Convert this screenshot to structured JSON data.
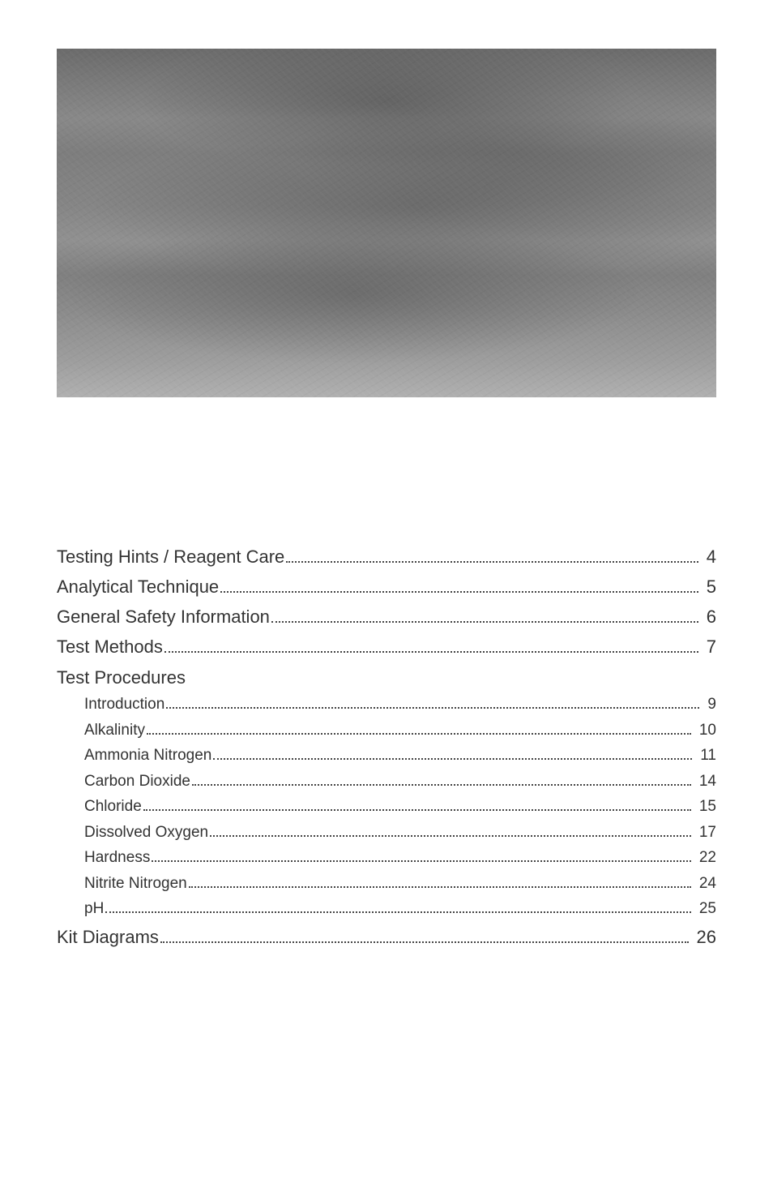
{
  "hero": {
    "alt": "grayscale-fish-photo"
  },
  "toc": {
    "top": [
      {
        "label": "Testing Hints / Reagent Care",
        "page": "4"
      },
      {
        "label": "Analytical Technique",
        "page": "5"
      },
      {
        "label": "General Safety Information",
        "page": "6"
      },
      {
        "label": "Test Methods",
        "page": "7"
      }
    ],
    "procedures_header": "Test Procedures",
    "procedures": [
      {
        "label": "Introduction",
        "page": "9"
      },
      {
        "label": "Alkalinity",
        "page": "10"
      },
      {
        "label": "Ammonia Nitrogen",
        "page": "11"
      },
      {
        "label": "Carbon Dioxide",
        "page": "14"
      },
      {
        "label": "Chloride",
        "page": "15"
      },
      {
        "label": "Dissolved Oxygen",
        "page": "17"
      },
      {
        "label": "Hardness",
        "page": "22"
      },
      {
        "label": "Nitrite Nitrogen",
        "page": "24"
      },
      {
        "label": "pH",
        "page": "25"
      }
    ],
    "bottom": [
      {
        "label": "Kit Diagrams",
        "page": "26"
      }
    ]
  },
  "colors": {
    "text": "#333333",
    "dots": "#444444",
    "background": "#ffffff"
  },
  "typography": {
    "main_fontsize": 22,
    "sub_fontsize": 19,
    "font_family": "Arial"
  }
}
